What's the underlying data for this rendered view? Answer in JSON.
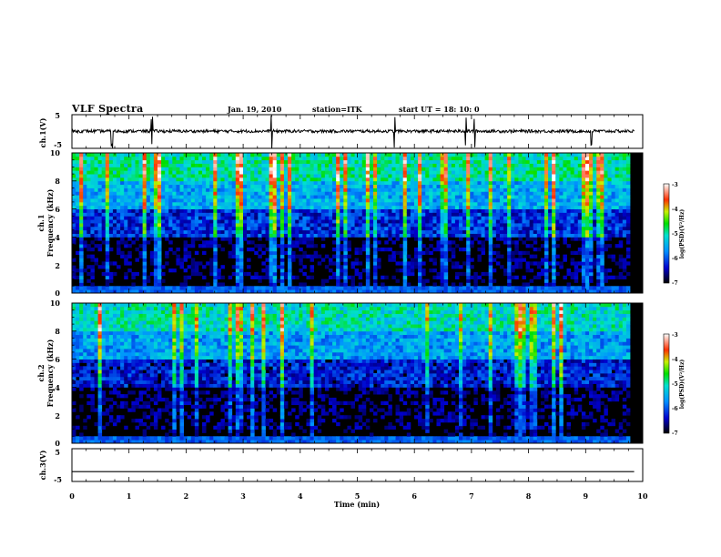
{
  "header": {
    "title": "VLF Spectra",
    "date": "Jan. 19, 2010",
    "station": "station=ITK",
    "start": "start  UT =   18: 10: 0"
  },
  "chart_data": [
    {
      "type": "line",
      "ylabel": "ch.1(V)",
      "ylim": [
        -5,
        5
      ],
      "yticks": [
        -5,
        5
      ],
      "xlim": [
        0,
        10
      ],
      "series": [
        {
          "values_description_only": true,
          "baseline": 0.1,
          "spikes_at_min": [
            0.7,
            1.4,
            3.5,
            5.65,
            6.9,
            7.05,
            9.1
          ]
        }
      ]
    },
    {
      "type": "heatmap",
      "ylabel": "Frequency (kHz)",
      "channel_label": "ch.1",
      "ylim": [
        0,
        10
      ],
      "yticks": [
        0,
        2,
        4,
        6,
        8,
        10
      ],
      "xlim": [
        0,
        10
      ],
      "colorbar": {
        "label": "log(PSD)(V²/Hz)",
        "range": [
          -7,
          -3
        ],
        "ticks": [
          -7,
          -6,
          -5,
          -4,
          -3
        ]
      },
      "band_levels_log_psd": {
        "0-1kHz": -7,
        "1-4kHz": -6.8,
        "4-6kHz": -6.2,
        "6-8kHz": -5.5,
        "8-10kHz": -5.0
      }
    },
    {
      "type": "heatmap",
      "ylabel": "Frequency (kHz)",
      "channel_label": "ch.2",
      "ylim": [
        0,
        10
      ],
      "yticks": [
        0,
        2,
        4,
        6,
        8,
        10
      ],
      "xlim": [
        0,
        10
      ],
      "colorbar": {
        "label": "log(PSD)(V²/Hz)",
        "range": [
          -7,
          -3
        ],
        "ticks": [
          -7,
          -6,
          -5,
          -4,
          -3
        ]
      },
      "band_levels_log_psd": {
        "0-1kHz": -7,
        "1-4kHz": -6.8,
        "4-6kHz": -6.3,
        "6-8kHz": -5.6,
        "8-10kHz": -5.1
      }
    },
    {
      "type": "line",
      "ylabel": "ch.3(V)",
      "ylim": [
        -5,
        5
      ],
      "yticks": [
        -5,
        5
      ],
      "xlim": [
        0,
        10
      ],
      "series": [
        {
          "baseline": -2
        }
      ]
    }
  ],
  "x_axis": {
    "label": "Time (min)",
    "ticks": [
      0,
      1,
      2,
      3,
      4,
      5,
      6,
      7,
      8,
      9,
      10
    ]
  }
}
